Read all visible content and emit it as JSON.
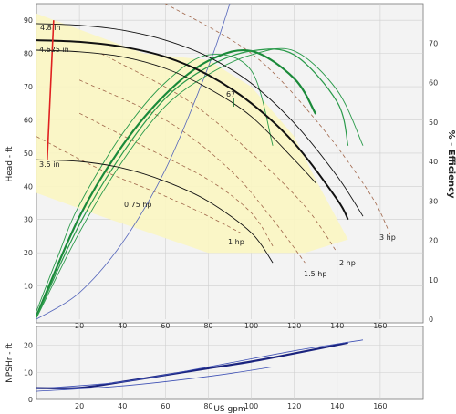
{
  "chart_data": [
    {
      "type": "line",
      "panel": "head-efficiency",
      "xlabel": "",
      "ylabel": "Head - ft",
      "y2label": "% - Efficiency",
      "xlim": [
        0,
        180
      ],
      "ylim": [
        0,
        95
      ],
      "y2lim": [
        0,
        80
      ],
      "xticks": [
        "20",
        "40",
        "60",
        "80",
        "100",
        "120",
        "140",
        "160"
      ],
      "yticks": [
        "10",
        "20",
        "30",
        "40",
        "50",
        "60",
        "70",
        "80",
        "90"
      ],
      "y2ticks": [
        "0",
        "10",
        "20",
        "30",
        "40",
        "50",
        "60",
        "70"
      ],
      "grid": true,
      "operating_region": [
        [
          0,
          92
        ],
        [
          50,
          80
        ],
        [
          80,
          78
        ],
        [
          100,
          70
        ],
        [
          120,
          55
        ],
        [
          130,
          42
        ],
        [
          145,
          24
        ],
        [
          125,
          20
        ],
        [
          80,
          20
        ],
        [
          30,
          31
        ],
        [
          0,
          38
        ]
      ],
      "head_curves": [
        {
          "name": "4.8 in",
          "x": [
            0,
            20,
            40,
            60,
            80,
            100,
            120,
            140,
            152
          ],
          "y": [
            89,
            88.5,
            87,
            84,
            79,
            71,
            59,
            43,
            31
          ]
        },
        {
          "name": "4.625 in",
          "x": [
            0,
            20,
            40,
            60,
            80,
            100,
            120,
            140,
            145
          ],
          "y": [
            84,
            83.5,
            82,
            79,
            73.5,
            65,
            53,
            36,
            30
          ]
        },
        {
          "name": "",
          "x": [
            0,
            20,
            40,
            60,
            80,
            100,
            120,
            130
          ],
          "y": [
            81,
            80.5,
            79,
            75.5,
            69.5,
            61,
            48,
            41
          ]
        },
        {
          "name": "3.5 in",
          "x": [
            0,
            20,
            40,
            60,
            80,
            100,
            110
          ],
          "y": [
            48,
            47.5,
            45.5,
            41.5,
            35.5,
            26,
            17
          ]
        }
      ],
      "efficiency_curves": [
        {
          "name": "",
          "x": [
            0,
            10,
            20,
            40,
            60,
            80,
            100,
            110
          ],
          "y": [
            2,
            16,
            29,
            47,
            60,
            67,
            63,
            44
          ]
        },
        {
          "name": "",
          "x": [
            0,
            20,
            40,
            60,
            80,
            100,
            120,
            130
          ],
          "y": [
            0.8,
            26,
            44,
            57,
            65.5,
            68,
            61,
            52
          ]
        },
        {
          "name": "",
          "x": [
            0,
            20,
            40,
            60,
            80,
            100,
            120,
            140,
            145
          ],
          "y": [
            0.5,
            24,
            42,
            56,
            64,
            68,
            67,
            55,
            44
          ]
        },
        {
          "name": "",
          "x": [
            0,
            20,
            40,
            60,
            80,
            100,
            120,
            140,
            152
          ],
          "y": [
            0.3,
            22,
            40,
            54,
            62,
            67,
            68,
            58,
            44
          ]
        }
      ],
      "power_curves": [
        {
          "name": "0.75 hp",
          "x": [
            0,
            30,
            60,
            80,
            95
          ],
          "y": [
            55,
            45,
            37,
            31,
            26
          ]
        },
        {
          "name": "1 hp",
          "x": [
            20,
            50,
            80,
            100,
            110
          ],
          "y": [
            62,
            52,
            42,
            32,
            22
          ]
        },
        {
          "name": "1.5 hp",
          "x": [
            20,
            60,
            90,
            110,
            125
          ],
          "y": [
            72,
            60,
            45,
            30,
            17
          ]
        },
        {
          "name": "2 hp",
          "x": [
            30,
            70,
            100,
            125,
            140
          ],
          "y": [
            80,
            66,
            50,
            34,
            20
          ]
        },
        {
          "name": "3 hp",
          "x": [
            60,
            100,
            130,
            155,
            165
          ],
          "y": [
            95,
            80,
            60,
            38,
            25
          ]
        }
      ],
      "system_curve": {
        "x": [
          0,
          20,
          40,
          60,
          80,
          90
        ],
        "y": [
          0,
          8,
          23,
          45,
          76,
          95
        ]
      },
      "diameter_range_marker": {
        "x": [
          5,
          8
        ],
        "y": [
          48,
          90
        ]
      },
      "annotations": [
        "67"
      ]
    },
    {
      "type": "line",
      "panel": "npsh",
      "xlabel": "US gpm",
      "ylabel": "NPSHr - ft",
      "xlim": [
        0,
        180
      ],
      "ylim": [
        0,
        27
      ],
      "xticks": [
        "20",
        "40",
        "60",
        "80",
        "100",
        "120",
        "140",
        "160"
      ],
      "yticks": [
        "0",
        "10",
        "20"
      ],
      "grid": true,
      "series": [
        {
          "name": "",
          "x": [
            0,
            20,
            40,
            60,
            80,
            100,
            120,
            145
          ],
          "y": [
            4.2,
            4.3,
            6.5,
            9,
            11.5,
            14,
            17,
            21
          ]
        },
        {
          "name": "",
          "x": [
            0,
            40,
            80,
            110
          ],
          "y": [
            3,
            5,
            8.5,
            12
          ]
        },
        {
          "name": "",
          "x": [
            0,
            40,
            80,
            120,
            152
          ],
          "y": [
            4,
            6.5,
            12,
            18,
            22
          ]
        }
      ]
    }
  ]
}
